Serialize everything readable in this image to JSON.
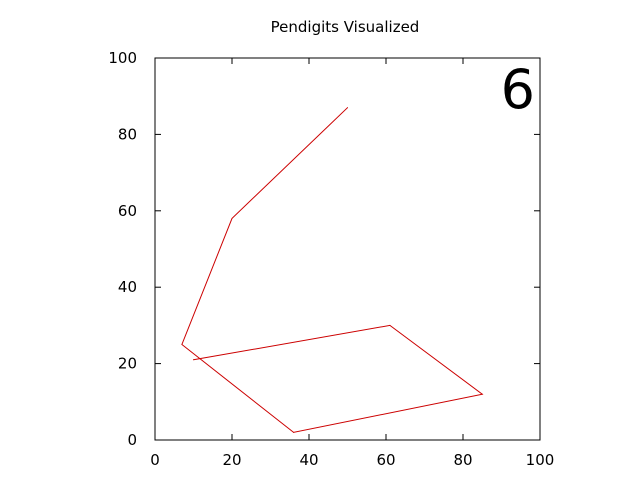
{
  "chart_data": {
    "type": "line",
    "title": "Pendigits Visualized",
    "annotation": "6",
    "xlabel": "",
    "ylabel": "",
    "xlim": [
      0,
      100
    ],
    "ylim": [
      0,
      100
    ],
    "x_ticks": [
      0,
      20,
      40,
      60,
      80,
      100
    ],
    "y_ticks": [
      0,
      20,
      40,
      60,
      80,
      100
    ],
    "grid": false,
    "series": [
      {
        "color": "#cc0000",
        "x": [
          50,
          20,
          7,
          36,
          85,
          61,
          10
        ],
        "y": [
          87,
          58,
          25,
          2,
          12,
          30,
          21
        ]
      }
    ]
  }
}
